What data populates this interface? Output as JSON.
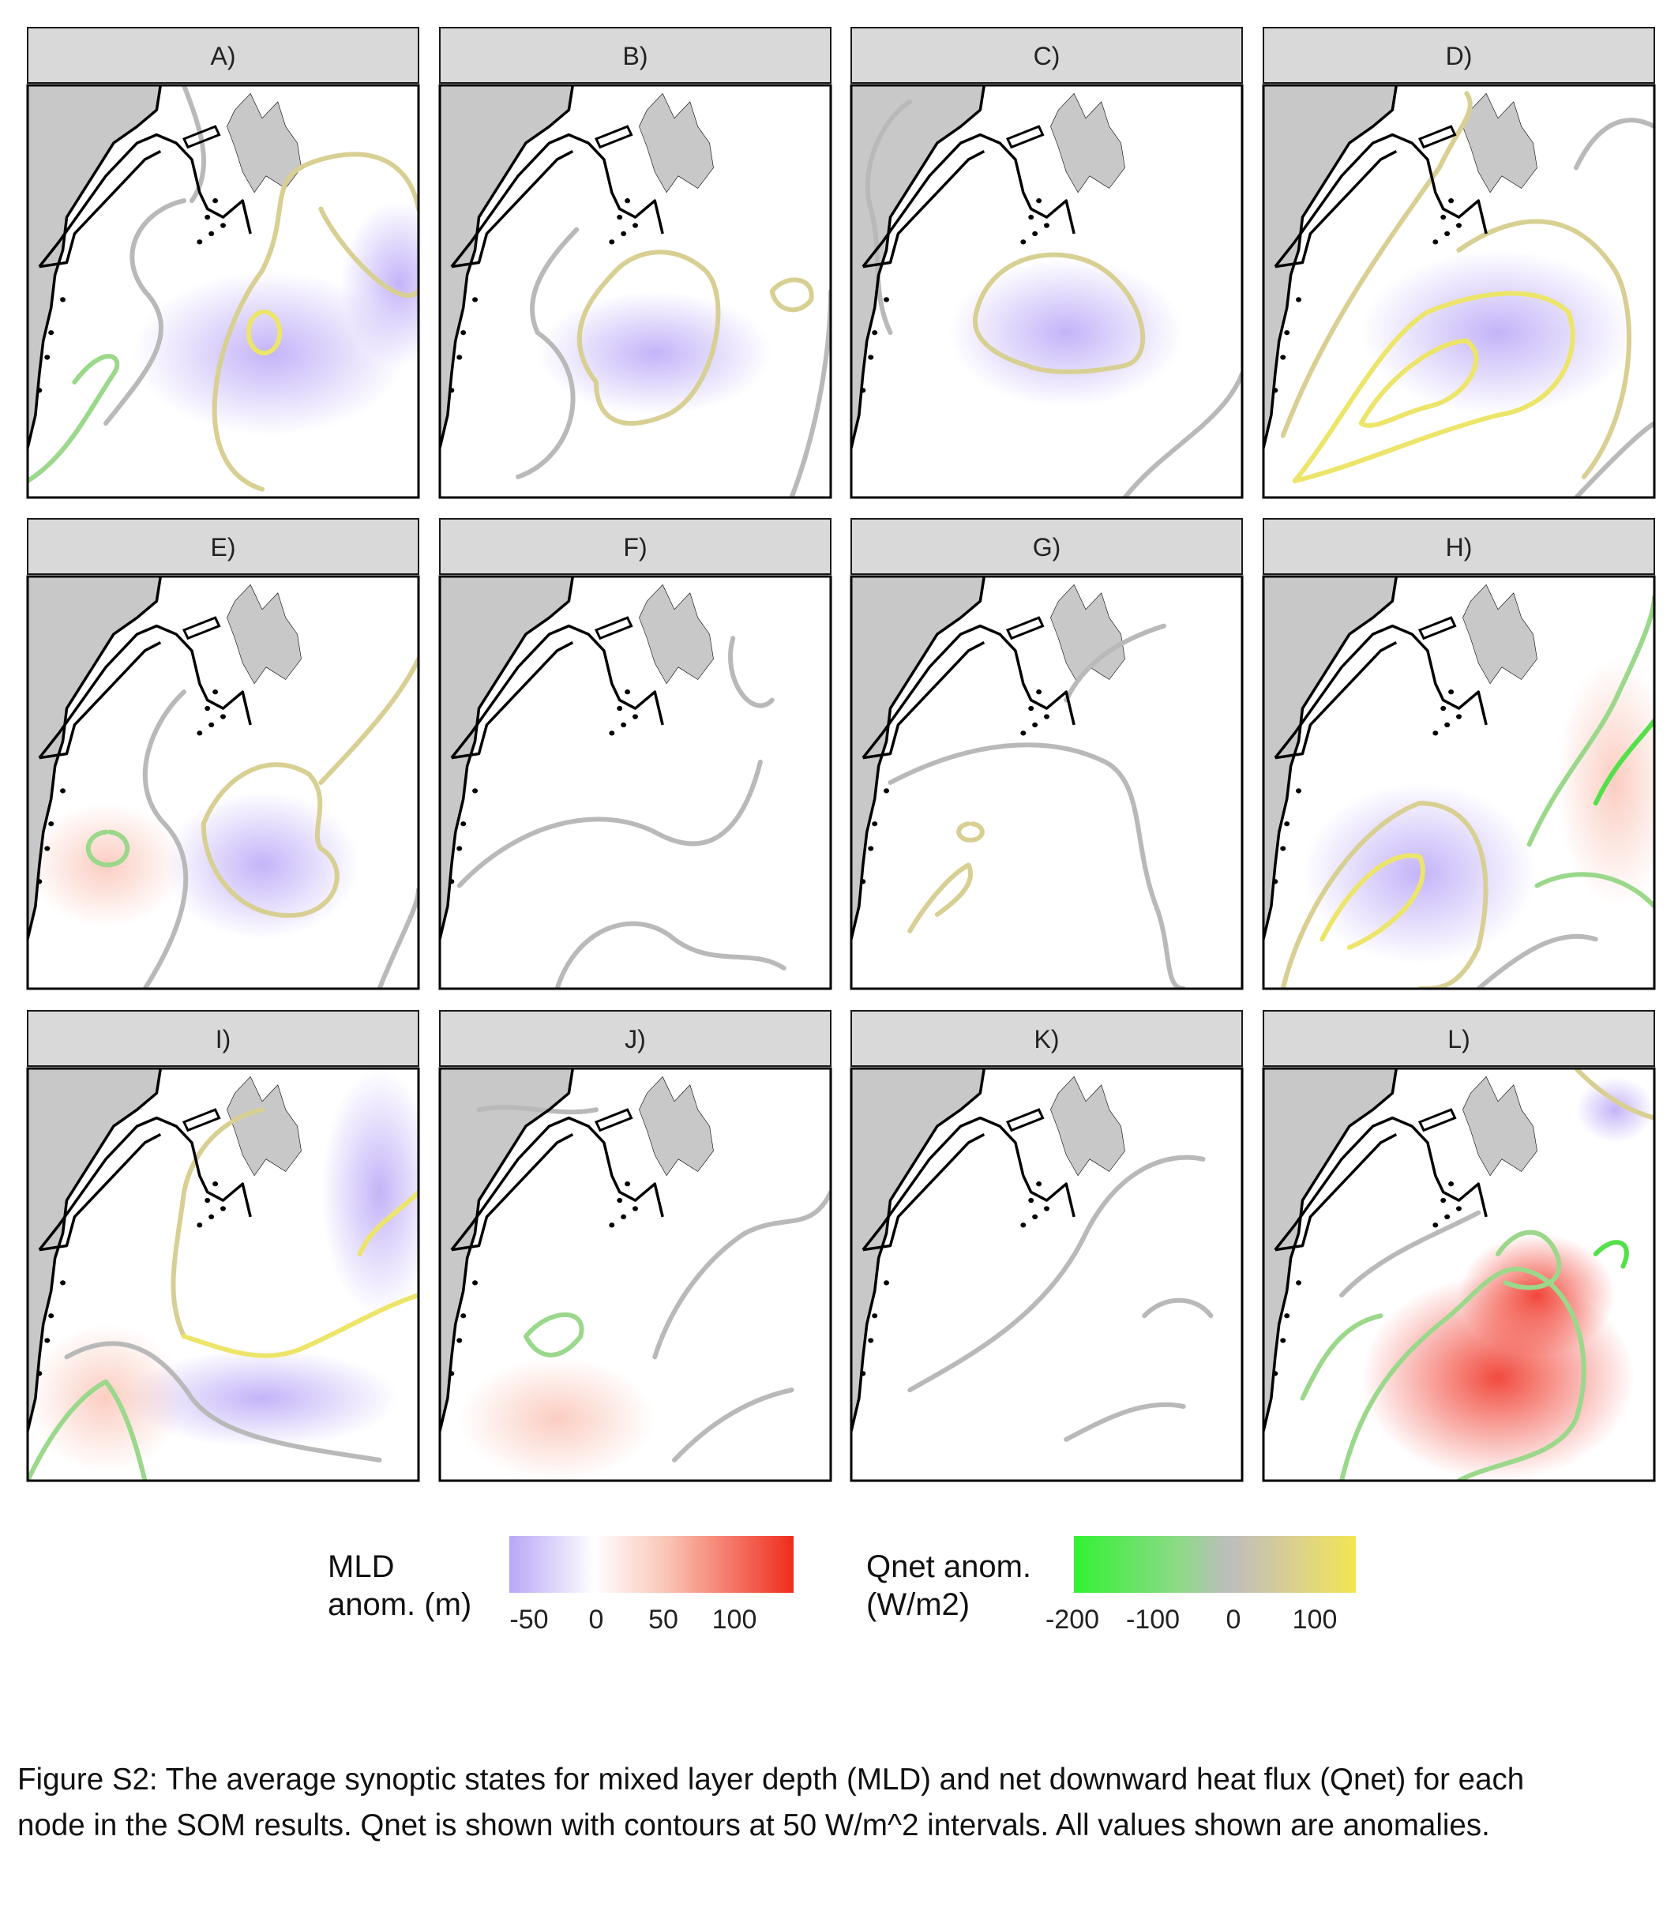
{
  "panels": [
    "A)",
    "B)",
    "C)",
    "D)",
    "E)",
    "F)",
    "G)",
    "H)",
    "I)",
    "J)",
    "K)",
    "L)"
  ],
  "legend": {
    "mld": {
      "title_line1": "MLD",
      "title_line2": "anom. (m)",
      "ticks": [
        "-50",
        "0",
        "50",
        "100"
      ],
      "colors": {
        "low": "#b9a6f7",
        "mid": "#ffffff",
        "high": "#ef2b1c"
      }
    },
    "qnet": {
      "title_line1": "Qnet anom.",
      "title_line2": "(W/m2)",
      "ticks": [
        "-200",
        "-100",
        "0",
        "100"
      ],
      "colors": {
        "low": "#33f233",
        "mid": "#bdbdbd",
        "high": "#f2e652"
      }
    }
  },
  "colors": {
    "strip": "#d9d9d9",
    "land": "#c8c8c8",
    "coast": "#000000",
    "contour_grey": "#b9b9b9",
    "contour_tan": "#d8cf93",
    "contour_yellow": "#ece56a",
    "contour_green": "#9bd88b",
    "contour_bright_green": "#55e04b"
  },
  "caption": {
    "line1": "Figure S2: The average synoptic states for mixed layer depth (MLD) and net downward heat flux (Qnet) for each",
    "line2": "node in the SOM results.  Qnet is shown with contours at 50 W/m^2 intervals. All values shown are anomalies."
  }
}
